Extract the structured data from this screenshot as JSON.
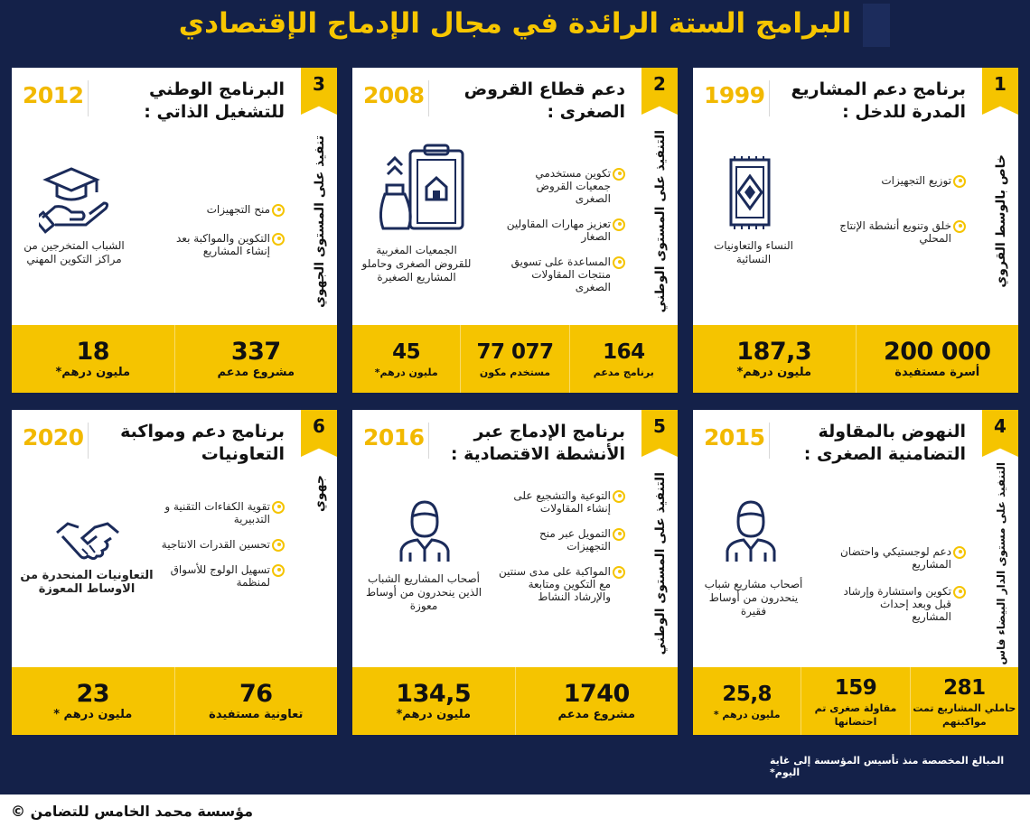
{
  "title": "البرامج الستة الرائدة في مجال الإدماج الإقتصادي",
  "cards": [
    {
      "number": "1",
      "year": "1999",
      "title": "برنامج دعم المشاريع المدرة للدخل :",
      "vertical": "خاص بالوسط القروي",
      "bullets": [
        "توزيع التجهيزات",
        "خلق وتنويع أنشطة الإنتاج المحلي"
      ],
      "beneficiary": "النساء والتعاونيات النسائية",
      "icon": "rug-icon",
      "stats": [
        {
          "num": "200 000",
          "lbl": "أسرة مستفيدة"
        },
        {
          "num": "187,3",
          "lbl": "مليون درهم*"
        }
      ]
    },
    {
      "number": "2",
      "year": "2008",
      "title": "دعم قطاع القروض الصغرى :",
      "vertical": "التنفيذ على المستوى الوطني",
      "bullets": [
        "تكوين مستخدمي جمعيات القروض الصغرى",
        "تعزيز مهارات المقاولين الصغار",
        "المساعدة على تسويق منتجات المقاولات الصغرى"
      ],
      "beneficiary": "الجمعيات المغربية للقروض الصغرى وحاملو المشاريع الصغيرة",
      "icon": "money-bag-clipboard-icon",
      "stats": [
        {
          "num": "164",
          "lbl": "برنامج مدعم"
        },
        {
          "num": "77 077",
          "lbl": "مستخدم مكون"
        },
        {
          "num": "45",
          "lbl": "مليون درهم*"
        }
      ]
    },
    {
      "number": "3",
      "year": "2012",
      "title": "البرنامج الوطني للتشغيل الذاتي :",
      "vertical": "تنفيذ على المستوى الجهوي",
      "bullets": [
        "منح التجهيزات",
        "التكوين والمواكبة بعد إنشاء المشاريع"
      ],
      "beneficiary": "الشباب المتخرجين من مراكز التكوين المهني",
      "icon": "graduation-cap-hand-icon",
      "stats": [
        {
          "num": "337",
          "lbl": "مشروع مدعم"
        },
        {
          "num": "18",
          "lbl": "مليون درهم*"
        }
      ]
    },
    {
      "number": "4",
      "year": "2015",
      "title": "النهوض بالمقاولة التضامنية الصغرى :",
      "vertical": "التنفيذ على مستوى الدار البيضاء فاس",
      "bullets": [
        "دعم لوجستيكي واحتضان المشاريع",
        "تكوين واستشارة وإرشاد قبل وبعد إحداث المشاريع"
      ],
      "beneficiary": "أصحاب مشاريع شباب ينحدرون من أوساط فقيرة",
      "icon": "person-icon",
      "stats": [
        {
          "num": "281",
          "lbl": "حاملي المشاريع تمت مواكبتهم"
        },
        {
          "num": "159",
          "lbl": "مقاولة صغرى تم احتضانها"
        },
        {
          "num": "25,8",
          "lbl": "مليون درهم *"
        }
      ]
    },
    {
      "number": "5",
      "year": "2016",
      "title": "برنامج الإدماج عبر الأنشطة الاقتصادية :",
      "vertical": "التنفيذ على المستوى الوطني",
      "bullets": [
        "التوعية والتشجيع على إنشاء المقاولات",
        "التمويل عبر منح التجهيزات",
        "المواكبة على مدى سنتين مع التكوين ومتابعة والإرشاد النشاط"
      ],
      "beneficiary": "أصحاب المشاريع الشباب الذين ينحدرون من أوساط معوزة",
      "icon": "person-icon",
      "stats": [
        {
          "num": "1740",
          "lbl": "مشروع مدعم"
        },
        {
          "num": "134,5",
          "lbl": "مليون درهم*"
        }
      ]
    },
    {
      "number": "6",
      "year": "2020",
      "title": "برنامج دعم ومواكبة التعاونيات",
      "vertical": "جهوي",
      "bullets": [
        "تقوية الكفاءات التقنية و التدبيرية",
        "تحسين القدرات الانتاجية",
        "تسهيل الولوج للأسواق لمنظمة"
      ],
      "beneficiary": "التعاونيات المنحدرة من الاوساط المعوزة",
      "icon": "handshake-icon",
      "stats": [
        {
          "num": "76",
          "lbl": "تعاونية مستفيدة"
        },
        {
          "num": "23",
          "lbl": "مليون درهم *"
        }
      ]
    }
  ],
  "note": "المبالغ المخصصة منذ تأسيس المؤسسة إلى غاية اليوم*",
  "footer": "مؤسسة محمد الخامس للتضامن ©",
  "colors": {
    "navy": "#142149",
    "accent": "#f5c400",
    "year": "#f2b900"
  }
}
